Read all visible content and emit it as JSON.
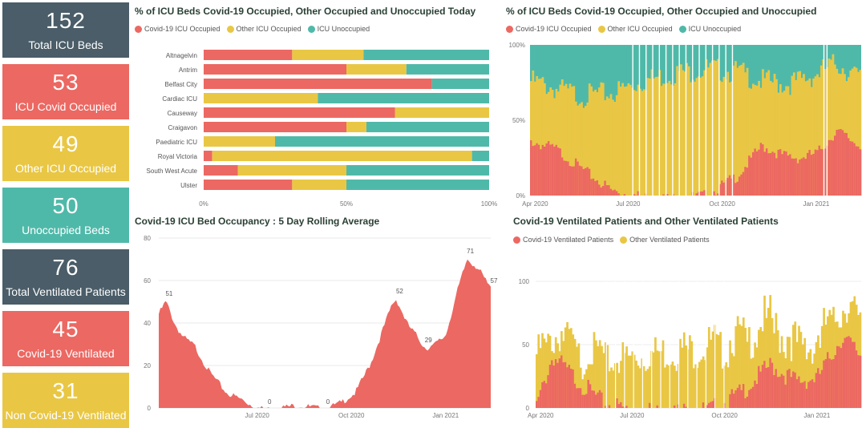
{
  "colors": {
    "covid": "#ec6862",
    "other": "#e9c744",
    "unoccupied": "#4fb9a9",
    "dark": "#4a5d68"
  },
  "kpis": [
    {
      "value": "152",
      "label": "Total ICU Beds",
      "color": "dark"
    },
    {
      "value": "53",
      "label": "ICU Covid Occupied",
      "color": "red"
    },
    {
      "value": "49",
      "label": "Other ICU Occupied",
      "color": "yel"
    },
    {
      "value": "50",
      "label": "Unoccupied Beds",
      "color": "teal"
    },
    {
      "value": "76",
      "label": "Total Ventilated Patients",
      "color": "dark"
    },
    {
      "value": "45",
      "label": "Covid-19 Ventilated",
      "color": "red"
    },
    {
      "value": "31",
      "label": "Non Covid-19 Ventilated",
      "color": "yel"
    }
  ],
  "chart_data": [
    {
      "type": "bar",
      "orientation": "horizontal-stacked-100",
      "title": "% of ICU Beds Covid-19 Occupied, Other Occupied and Unoccupied Today",
      "legend": [
        "Covid-19 ICU Occupied",
        "Other ICU Occupied",
        "ICU Unoccupied"
      ],
      "categories": [
        "Altnagelvin",
        "Antrim",
        "Belfast City",
        "Cardiac ICU",
        "Causeway",
        "Craigavon",
        "Paediatric ICU",
        "Royal Victoria",
        "South West Acute",
        "Ulster"
      ],
      "series": [
        {
          "name": "Covid-19 ICU Occupied",
          "values": [
            31,
            50,
            80,
            0,
            67,
            50,
            0,
            3,
            12,
            31
          ]
        },
        {
          "name": "Other ICU Occupied",
          "values": [
            25,
            21,
            0,
            40,
            33,
            7,
            25,
            91,
            38,
            19
          ]
        },
        {
          "name": "ICU Unoccupied",
          "values": [
            44,
            29,
            20,
            60,
            0,
            43,
            75,
            6,
            50,
            50
          ]
        }
      ],
      "xticks": [
        "0%",
        "50%",
        "100%"
      ]
    },
    {
      "type": "area",
      "title": "% of ICU Beds Covid-19 Occupied, Other Occupied and Unoccupied",
      "legend": [
        "Covid-19 ICU Occupied",
        "Other ICU Occupied",
        "ICU Unoccupied"
      ],
      "yticks": [
        "0%",
        "50%",
        "100%"
      ],
      "xticks": [
        "Apr 2020",
        "Jul 2020",
        "Oct 2020",
        "Jan 2021"
      ],
      "covid_pct": [
        {
          "x": "2020-03-27",
          "y": 38
        },
        {
          "x": "2020-04-20",
          "y": 33
        },
        {
          "x": "2020-05-15",
          "y": 20
        },
        {
          "x": "2020-06-15",
          "y": 5
        },
        {
          "x": "2020-07-15",
          "y": 1
        },
        {
          "x": "2020-08-15",
          "y": 0
        },
        {
          "x": "2020-09-15",
          "y": 2
        },
        {
          "x": "2020-10-15",
          "y": 15
        },
        {
          "x": "2020-11-08",
          "y": 35
        },
        {
          "x": "2020-12-01",
          "y": 28
        },
        {
          "x": "2020-12-15",
          "y": 27
        },
        {
          "x": "2021-01-01",
          "y": 30
        },
        {
          "x": "2021-01-20",
          "y": 45
        },
        {
          "x": "2021-02-10",
          "y": 36
        }
      ],
      "occupied_pct": [
        {
          "x": "2020-03-27",
          "y": 80
        },
        {
          "x": "2020-04-20",
          "y": 75
        },
        {
          "x": "2020-05-15",
          "y": 70
        },
        {
          "x": "2020-06-15",
          "y": 72
        },
        {
          "x": "2020-07-15",
          "y": 80
        },
        {
          "x": "2020-08-15",
          "y": 85
        },
        {
          "x": "2020-09-15",
          "y": 88
        },
        {
          "x": "2020-10-15",
          "y": 86
        },
        {
          "x": "2020-11-08",
          "y": 80
        },
        {
          "x": "2020-12-01",
          "y": 78
        },
        {
          "x": "2020-12-15",
          "y": 80
        },
        {
          "x": "2021-01-01",
          "y": 85
        },
        {
          "x": "2021-01-20",
          "y": 92
        },
        {
          "x": "2021-02-10",
          "y": 82
        }
      ]
    },
    {
      "type": "area",
      "title": "Covid-19 ICU Bed Occupancy : 5 Day Rolling Average",
      "ylim": [
        0,
        80
      ],
      "yticks": [
        0,
        20,
        40,
        60,
        80
      ],
      "xticks": [
        "Jul 2020",
        "Oct 2020",
        "Jan 2021"
      ],
      "points": [
        {
          "x": "2020-03-27",
          "y": 45
        },
        {
          "x": "2020-04-03",
          "y": 51
        },
        {
          "x": "2020-04-12",
          "y": 40
        },
        {
          "x": "2020-04-20",
          "y": 34
        },
        {
          "x": "2020-05-01",
          "y": 30
        },
        {
          "x": "2020-05-15",
          "y": 18
        },
        {
          "x": "2020-06-01",
          "y": 8
        },
        {
          "x": "2020-06-15",
          "y": 5
        },
        {
          "x": "2020-06-30",
          "y": 1
        },
        {
          "x": "2020-07-10",
          "y": 0
        },
        {
          "x": "2020-07-25",
          "y": 1
        },
        {
          "x": "2020-08-10",
          "y": 2
        },
        {
          "x": "2020-08-25",
          "y": 1
        },
        {
          "x": "2020-09-05",
          "y": 0
        },
        {
          "x": "2020-09-20",
          "y": 3
        },
        {
          "x": "2020-10-05",
          "y": 8
        },
        {
          "x": "2020-10-20",
          "y": 22
        },
        {
          "x": "2020-11-01",
          "y": 38
        },
        {
          "x": "2020-11-10",
          "y": 50
        },
        {
          "x": "2020-11-14",
          "y": 52
        },
        {
          "x": "2020-11-25",
          "y": 40
        },
        {
          "x": "2020-12-05",
          "y": 34
        },
        {
          "x": "2020-12-12",
          "y": 29
        },
        {
          "x": "2020-12-20",
          "y": 30
        },
        {
          "x": "2021-01-01",
          "y": 35
        },
        {
          "x": "2021-01-12",
          "y": 55
        },
        {
          "x": "2021-01-22",
          "y": 71
        },
        {
          "x": "2021-02-01",
          "y": 67
        },
        {
          "x": "2021-02-10",
          "y": 60
        },
        {
          "x": "2021-02-14",
          "y": 57
        }
      ],
      "labels": [
        {
          "x": "2020-04-03",
          "y": 51,
          "text": "51"
        },
        {
          "x": "2020-07-10",
          "y": 0,
          "text": "0"
        },
        {
          "x": "2020-09-05",
          "y": 0,
          "text": "0"
        },
        {
          "x": "2020-11-14",
          "y": 52,
          "text": "52"
        },
        {
          "x": "2020-12-12",
          "y": 29,
          "text": "29"
        },
        {
          "x": "2021-01-22",
          "y": 71,
          "text": "71"
        },
        {
          "x": "2021-02-14",
          "y": 57,
          "text": "57"
        }
      ]
    },
    {
      "type": "bar",
      "stacked": true,
      "title": "Covid-19 Ventilated Patients and Other Ventilated Patients",
      "legend": [
        "Covid-19 Ventilated Patients",
        "Other Ventilated Patients"
      ],
      "ylim": [
        0,
        100
      ],
      "yticks": [
        0,
        50,
        100
      ],
      "xticks": [
        "Apr 2020",
        "Jul 2020",
        "Oct 2020",
        "Jan 2021"
      ],
      "covid": [
        {
          "x": "2020-03-27",
          "y": 5
        },
        {
          "x": "2020-04-12",
          "y": 45
        },
        {
          "x": "2020-05-01",
          "y": 30
        },
        {
          "x": "2020-06-01",
          "y": 8
        },
        {
          "x": "2020-07-01",
          "y": 2
        },
        {
          "x": "2020-08-01",
          "y": 1
        },
        {
          "x": "2020-09-15",
          "y": 2
        },
        {
          "x": "2020-10-15",
          "y": 15
        },
        {
          "x": "2020-11-15",
          "y": 38
        },
        {
          "x": "2020-12-10",
          "y": 25
        },
        {
          "x": "2021-01-01",
          "y": 28
        },
        {
          "x": "2021-01-25",
          "y": 60
        },
        {
          "x": "2021-02-14",
          "y": 45
        }
      ],
      "other": [
        {
          "x": "2020-03-27",
          "y": 45
        },
        {
          "x": "2020-04-12",
          "y": 25
        },
        {
          "x": "2020-05-01",
          "y": 30
        },
        {
          "x": "2020-06-01",
          "y": 42
        },
        {
          "x": "2020-07-01",
          "y": 48
        },
        {
          "x": "2020-08-01",
          "y": 52
        },
        {
          "x": "2020-09-15",
          "y": 55
        },
        {
          "x": "2020-10-15",
          "y": 50
        },
        {
          "x": "2020-11-15",
          "y": 42
        },
        {
          "x": "2020-12-10",
          "y": 35
        },
        {
          "x": "2021-01-01",
          "y": 35
        },
        {
          "x": "2021-01-25",
          "y": 35
        },
        {
          "x": "2021-02-14",
          "y": 31
        }
      ]
    }
  ]
}
